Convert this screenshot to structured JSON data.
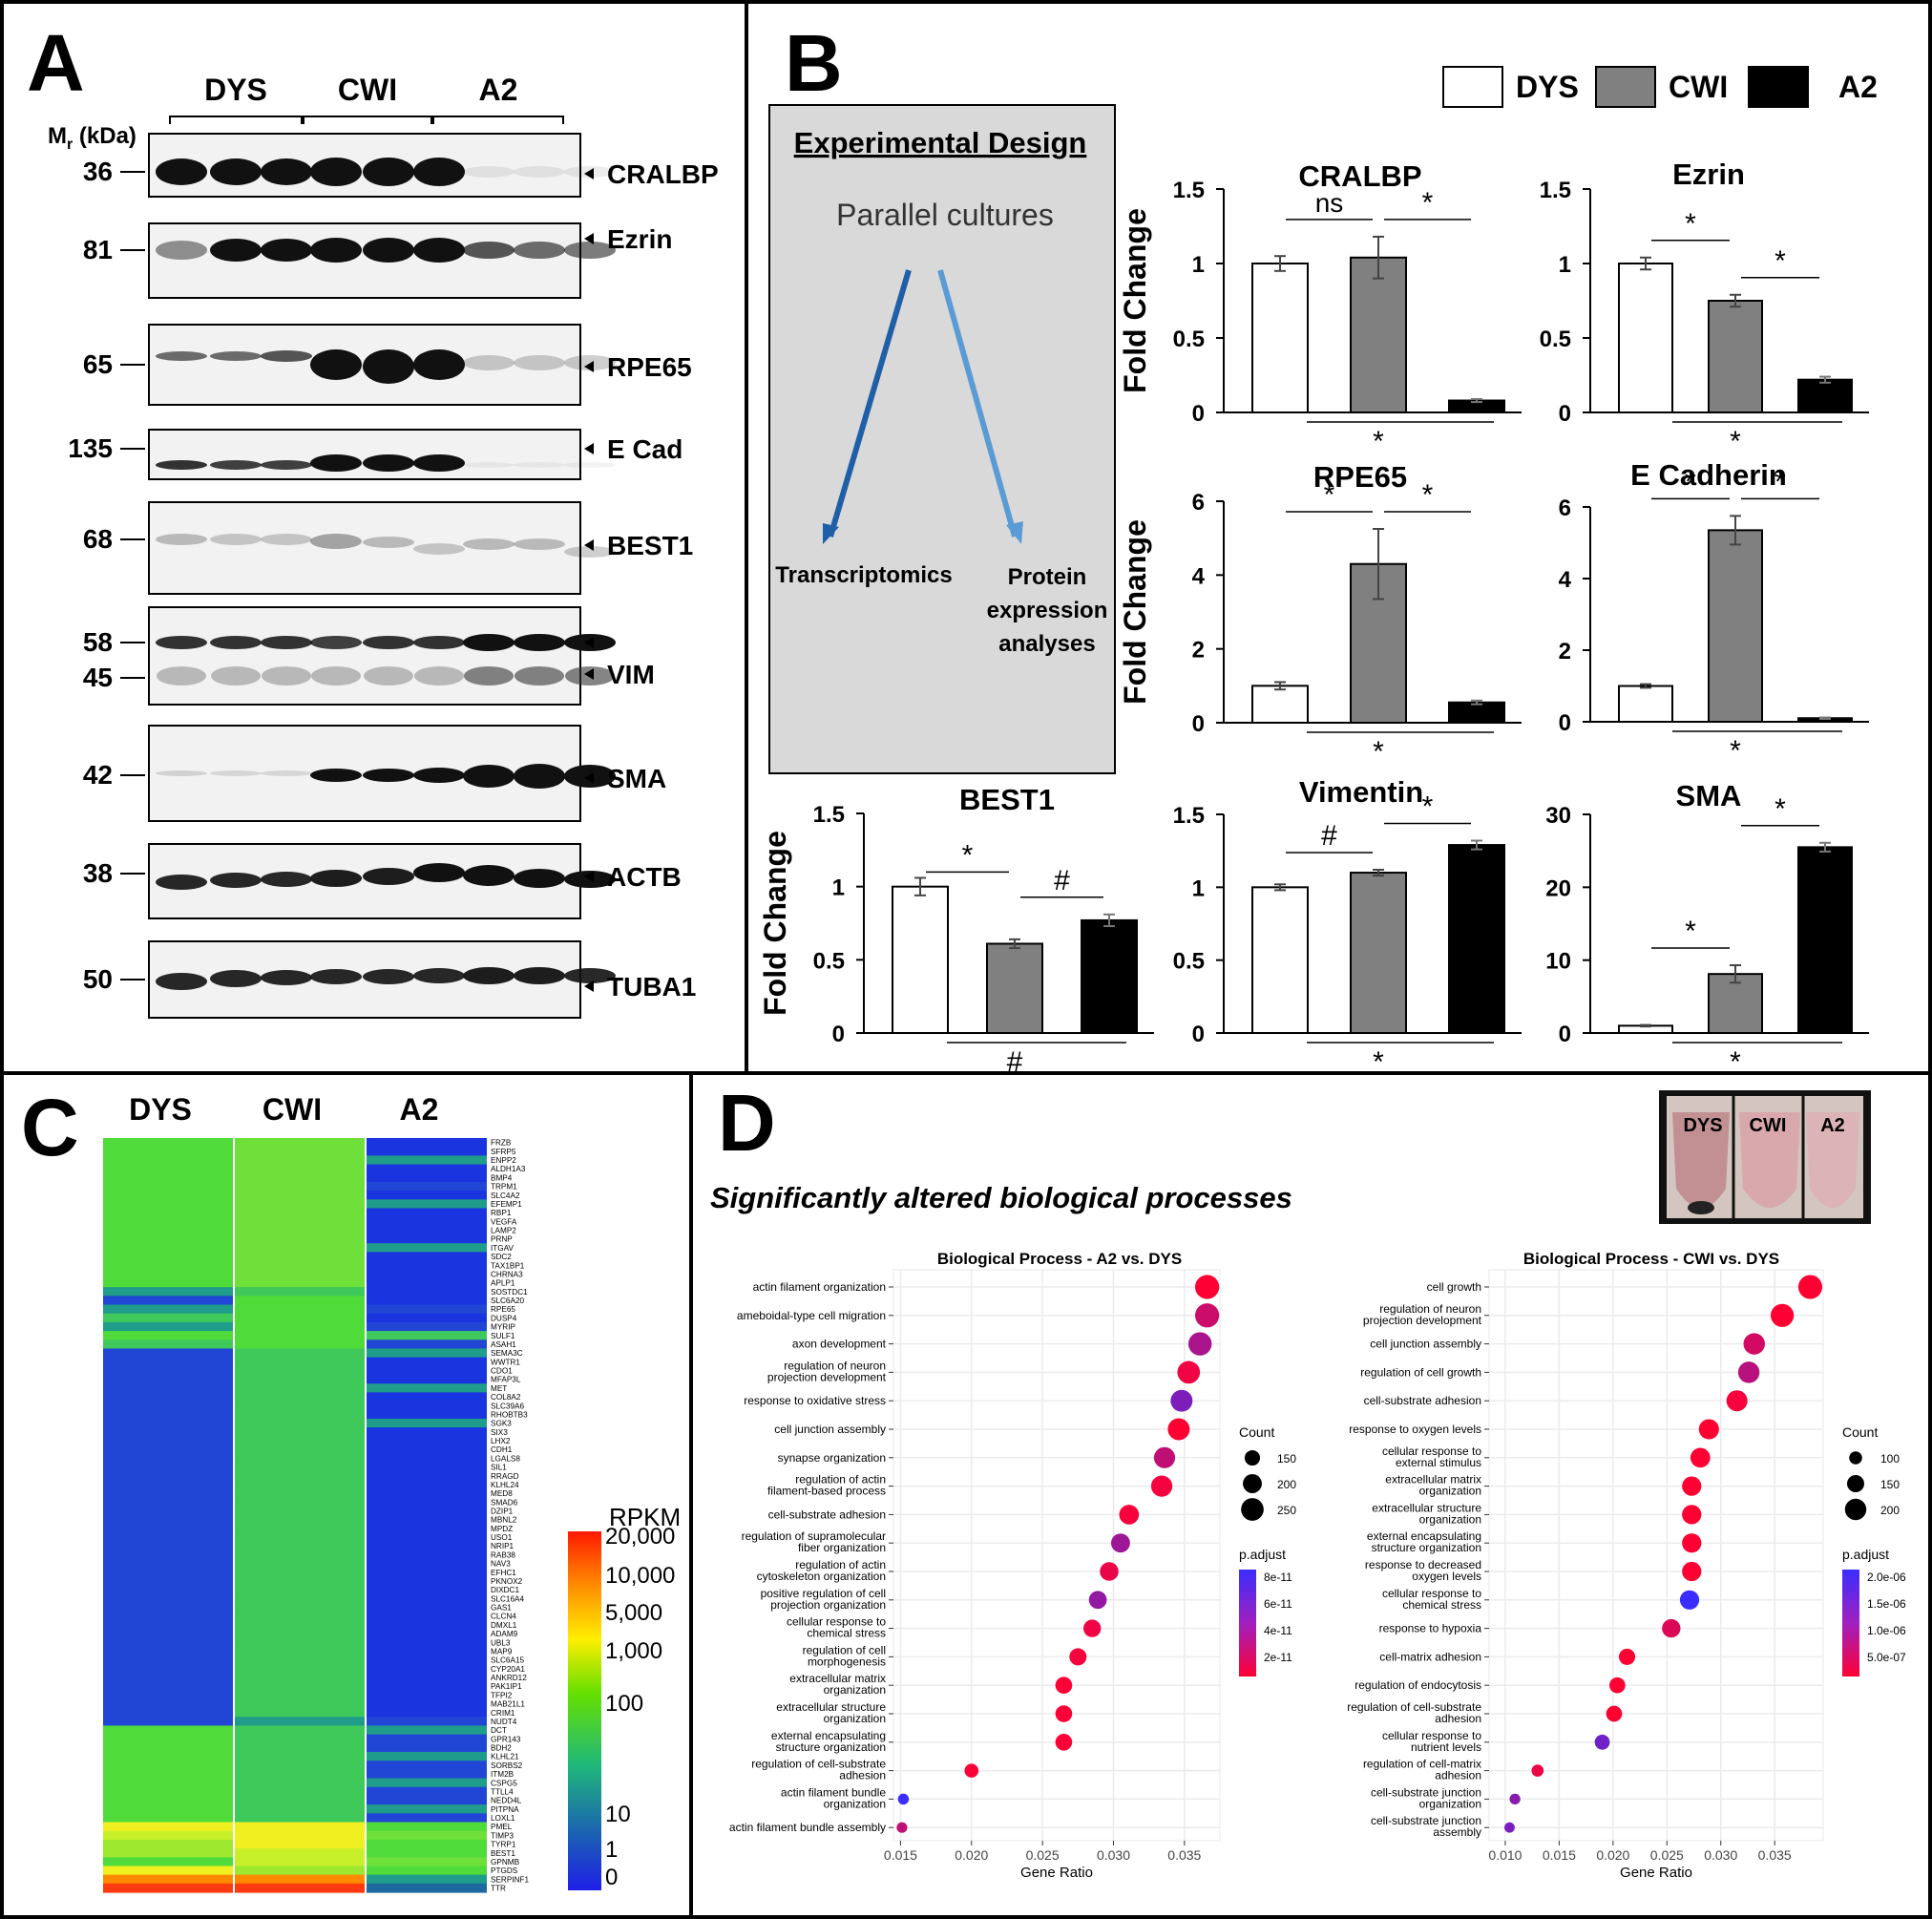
{
  "panelA": {
    "label": "A",
    "groups": [
      "DYS",
      "CWI",
      "A2"
    ],
    "mr_label": "M",
    "mr_sub": "r",
    "mr_unit": " (kDa)",
    "blots": [
      {
        "mw": [
          "36"
        ],
        "proteins": [
          "CRALBP"
        ]
      },
      {
        "mw": [
          "81"
        ],
        "proteins": [
          "Ezrin"
        ]
      },
      {
        "mw": [
          "65"
        ],
        "proteins": [
          "RPE65"
        ]
      },
      {
        "mw": [
          "135"
        ],
        "proteins": [
          "E Cad"
        ]
      },
      {
        "mw": [
          "68"
        ],
        "proteins": [
          "BEST1"
        ]
      },
      {
        "mw": [
          "58",
          "45"
        ],
        "proteins": [
          "VIM"
        ]
      },
      {
        "mw": [
          "42"
        ],
        "proteins": [
          "SMA"
        ]
      },
      {
        "mw": [
          "38"
        ],
        "proteins": [
          "ACTB"
        ]
      },
      {
        "mw": [
          "50"
        ],
        "proteins": [
          "TUBA1"
        ]
      }
    ]
  },
  "panelB": {
    "label": "B",
    "legend": [
      "DYS",
      "CWI",
      "A2"
    ],
    "design": {
      "title": "Experimental Design",
      "subtitle": "Parallel cultures",
      "left": "Transcriptomics",
      "right": [
        "Protein",
        "expression",
        "analyses"
      ]
    },
    "ylabel": "Fold Change"
  },
  "chart_data": [
    {
      "type": "bar",
      "title": "CRALBP",
      "categories": [
        "DYS",
        "CWI",
        "A2"
      ],
      "values": [
        1.0,
        1.04,
        0.08
      ],
      "errors": [
        0.05,
        0.14,
        0.01
      ],
      "ylim": [
        0,
        1.5
      ],
      "yticks": [
        "0",
        "0.5",
        "1",
        "1.5"
      ],
      "sig_top": [
        "ns",
        "*"
      ],
      "sig_bottom": "*",
      "ylabel": "Fold Change"
    },
    {
      "type": "bar",
      "title": "Ezrin",
      "categories": [
        "DYS",
        "CWI",
        "A2"
      ],
      "values": [
        1.0,
        0.75,
        0.22
      ],
      "errors": [
        0.04,
        0.04,
        0.02
      ],
      "ylim": [
        0,
        1.5
      ],
      "yticks": [
        "0",
        "0.5",
        "1",
        "1.5"
      ],
      "sig_top": [
        "*",
        "*"
      ],
      "sig_bottom": "*",
      "ylabel": ""
    },
    {
      "type": "bar",
      "title": "RPE65",
      "categories": [
        "DYS",
        "CWI",
        "A2"
      ],
      "values": [
        1.0,
        4.3,
        0.55
      ],
      "errors": [
        0.1,
        0.95,
        0.05
      ],
      "ylim": [
        0,
        6
      ],
      "yticks": [
        "0",
        "2",
        "4",
        "6"
      ],
      "sig_top": [
        "*",
        "*"
      ],
      "sig_bottom": "*",
      "ylabel": "Fold Change"
    },
    {
      "type": "bar",
      "title": "E Cadherin",
      "categories": [
        "DYS",
        "CWI",
        "A2"
      ],
      "values": [
        1.0,
        5.35,
        0.1
      ],
      "errors": [
        0.05,
        0.4,
        0.02
      ],
      "ylim": [
        0,
        6
      ],
      "yticks": [
        "0",
        "2",
        "4",
        "6"
      ],
      "sig_top": [
        "*",
        "*"
      ],
      "sig_bottom": "*",
      "ylabel": ""
    },
    {
      "type": "bar",
      "title": "BEST1",
      "categories": [
        "DYS",
        "CWI",
        "A2"
      ],
      "values": [
        1.0,
        0.61,
        0.77
      ],
      "errors": [
        0.06,
        0.03,
        0.04
      ],
      "ylim": [
        0,
        1.5
      ],
      "yticks": [
        "0",
        "0.5",
        "1",
        "1.5"
      ],
      "sig_top": [
        "*",
        "#"
      ],
      "sig_bottom": "#",
      "ylabel": "Fold Change"
    },
    {
      "type": "bar",
      "title": "Vimentin",
      "categories": [
        "DYS",
        "CWI",
        "A2"
      ],
      "values": [
        1.0,
        1.1,
        1.29
      ],
      "errors": [
        0.02,
        0.02,
        0.03
      ],
      "ylim": [
        0,
        1.5
      ],
      "yticks": [
        "0",
        "0.5",
        "1",
        "1.5"
      ],
      "sig_top": [
        "#",
        "*"
      ],
      "sig_bottom": "*",
      "ylabel": ""
    },
    {
      "type": "bar",
      "title": "SMA",
      "categories": [
        "DYS",
        "CWI",
        "A2"
      ],
      "values": [
        1.0,
        8.1,
        25.5
      ],
      "errors": [
        0.1,
        1.2,
        0.6
      ],
      "ylim": [
        0,
        30
      ],
      "yticks": [
        "0",
        "10",
        "20",
        "30"
      ],
      "sig_top": [
        "*",
        "*"
      ],
      "sig_bottom": "*",
      "ylabel": ""
    },
    {
      "type": "heatmap",
      "title": "RPKM",
      "columns": [
        "DYS",
        "CWI",
        "A2"
      ],
      "genes": [
        "FRZB",
        "SFRP5",
        "ENPP2",
        "ALDH1A3",
        "BMP4",
        "TRPM1",
        "SLC4A2",
        "EFEMP1",
        "RBP1",
        "VEGFA",
        "LAMP2",
        "PRNP",
        "ITGAV",
        "SDC2",
        "TAX1BP1",
        "CHRNA3",
        "APLP1",
        "SOSTDC1",
        "SLC6A20",
        "RPE65",
        "DUSP4",
        "MYRIP",
        "SULF1",
        "ASAH1",
        "SEMA3C",
        "WWTR1",
        "CDO1",
        "MFAP3L",
        "MET",
        "COL8A2",
        "SLC39A6",
        "RHOBTB3",
        "SGK3",
        "SIX3",
        "LHX2",
        "CDH1",
        "LGALS8",
        "SIL1",
        "RRAGD",
        "KLHL24",
        "MED8",
        "SMAD6",
        "DZIP1",
        "MBNL2",
        "MPDZ",
        "USO1",
        "NRIP1",
        "RAB38",
        "NAV3",
        "EFHC1",
        "PKNOX2",
        "DIXDC1",
        "SLC16A4",
        "GAS1",
        "CLCN4",
        "DMXL1",
        "ADAM9",
        "UBL3",
        "MAP9",
        "SLC6A15",
        "CYP20A1",
        "ANKRD12",
        "PAK1IP1",
        "TFPI2",
        "MAB21L1",
        "CRIM1",
        "NUDT4",
        "DCT",
        "GPR143",
        "BDH2",
        "KLHL21",
        "SORBS2",
        "ITM2B",
        "CSPG5",
        "TTLL4",
        "NEDD4L",
        "PITPNA",
        "LOXL1",
        "PMEL",
        "TIMP3",
        "TYRP1",
        "BEST1",
        "GPNMB",
        "PTGDS",
        "SERPINF1",
        "TTR"
      ],
      "scale_labels": [
        "20,000",
        "10,000",
        "5,000",
        "1,000",
        "100",
        "10",
        "1",
        "0"
      ]
    },
    {
      "type": "scatter",
      "title": "Biological Process - A2 vs. DYS",
      "xlabel": "Gene Ratio",
      "xlim": [
        0.0145,
        0.0375
      ],
      "xticks": [
        "0.015",
        "0.020",
        "0.025",
        "0.030",
        "0.035"
      ],
      "terms": [
        "actin filament organization",
        "ameboidal-type cell migration",
        "axon development",
        "regulation of neuron|projection development",
        "response to oxidative stress",
        "cell junction assembly",
        "synapse organization",
        "regulation of actin|filament-based process",
        "cell-substrate adhesion",
        "regulation of supramolecular|fiber organization",
        "regulation of actin|cytoskeleton organization",
        "positive regulation of cell|projection organization",
        "cellular response to|chemical stress",
        "regulation of cell|morphogenesis",
        "extracellular matrix|organization",
        "extracellular structure|organization",
        "external encapsulating|structure organization",
        "regulation of cell-substrate|adhesion",
        "actin filament bundle|organization",
        "actin filament bundle assembly"
      ],
      "gene_ratio": [
        0.0366,
        0.0366,
        0.0361,
        0.0353,
        0.0348,
        0.0346,
        0.0336,
        0.0334,
        0.0311,
        0.0305,
        0.0297,
        0.0289,
        0.0285,
        0.0275,
        0.0265,
        0.0265,
        0.0265,
        0.02,
        0.0152,
        0.0151
      ],
      "count": [
        270,
        270,
        260,
        250,
        240,
        240,
        230,
        230,
        210,
        200,
        195,
        185,
        180,
        175,
        170,
        170,
        170,
        130,
        90,
        85
      ],
      "p_adjust": [
        1e-12,
        2.5e-11,
        4e-11,
        8e-12,
        6e-11,
        1e-12,
        3e-11,
        6e-12,
        5e-12,
        4.5e-11,
        1e-11,
        5e-11,
        8e-12,
        5e-12,
        3e-12,
        3e-12,
        3e-12,
        3e-12,
        9e-11,
        3e-11
      ],
      "count_legend": {
        "title": "Count",
        "values": [
          "150",
          "200",
          "250"
        ]
      },
      "padj_legend": {
        "title": "p.adjust",
        "values": [
          "8e-11",
          "6e-11",
          "4e-11",
          "2e-11"
        ]
      }
    },
    {
      "type": "scatter",
      "title": "Biological Process - CWI vs. DYS",
      "xlabel": "Gene Ratio",
      "xlim": [
        0.0085,
        0.0395
      ],
      "xticks": [
        "0.010",
        "0.015",
        "0.020",
        "0.025",
        "0.030",
        "0.035"
      ],
      "terms": [
        "cell growth",
        "regulation of neuron|projection development",
        "cell junction assembly",
        "regulation of cell growth",
        "cell-substrate adhesion",
        "response to oxygen levels",
        "cellular response to|external stimulus",
        "extracellular matrix|organization",
        "extracellular structure|organization",
        "external encapsulating|structure organization",
        "response to decreased|oxygen levels",
        "cellular response to|chemical stress",
        "response to hypoxia",
        "cell-matrix adhesion",
        "regulation of endocytosis",
        "regulation of cell-substrate|adhesion",
        "cellular response to|nutrient levels",
        "regulation of cell-matrix|adhesion",
        "cell-substrate junction|organization",
        "cell-substrate junction|assembly"
      ],
      "gene_ratio": [
        0.0383,
        0.0357,
        0.0331,
        0.0326,
        0.0315,
        0.0289,
        0.0281,
        0.0273,
        0.0273,
        0.0273,
        0.0273,
        0.0271,
        0.0254,
        0.0213,
        0.0204,
        0.0201,
        0.019,
        0.013,
        0.0109,
        0.0104
      ],
      "count": [
        230,
        220,
        200,
        200,
        195,
        185,
        180,
        175,
        175,
        175,
        175,
        175,
        165,
        140,
        135,
        135,
        125,
        90,
        75,
        70
      ],
      "p_adjust": [
        1e-07,
        1e-07,
        6e-07,
        9e-07,
        2e-07,
        1e-07,
        1e-07,
        1e-07,
        1e-07,
        1e-07,
        1e-07,
        2.3e-06,
        5e-07,
        1e-07,
        1e-07,
        1e-07,
        1.7e-06,
        3e-07,
        1.4e-06,
        1.6e-06
      ],
      "count_legend": {
        "title": "Count",
        "values": [
          "100",
          "150",
          "200"
        ]
      },
      "padj_legend": {
        "title": "p.adjust",
        "values": [
          "2.0e-06",
          "1.5e-06",
          "1.0e-06",
          "5.0e-07"
        ]
      }
    }
  ],
  "panelC": {
    "label": "C",
    "columns": [
      "DYS",
      "CWI",
      "A2"
    ],
    "scale_title": "RPKM"
  },
  "panelD": {
    "label": "D",
    "subtitle": "Significantly altered biological processes",
    "photo_labels": [
      "DYS",
      "CWI",
      "A2"
    ]
  }
}
